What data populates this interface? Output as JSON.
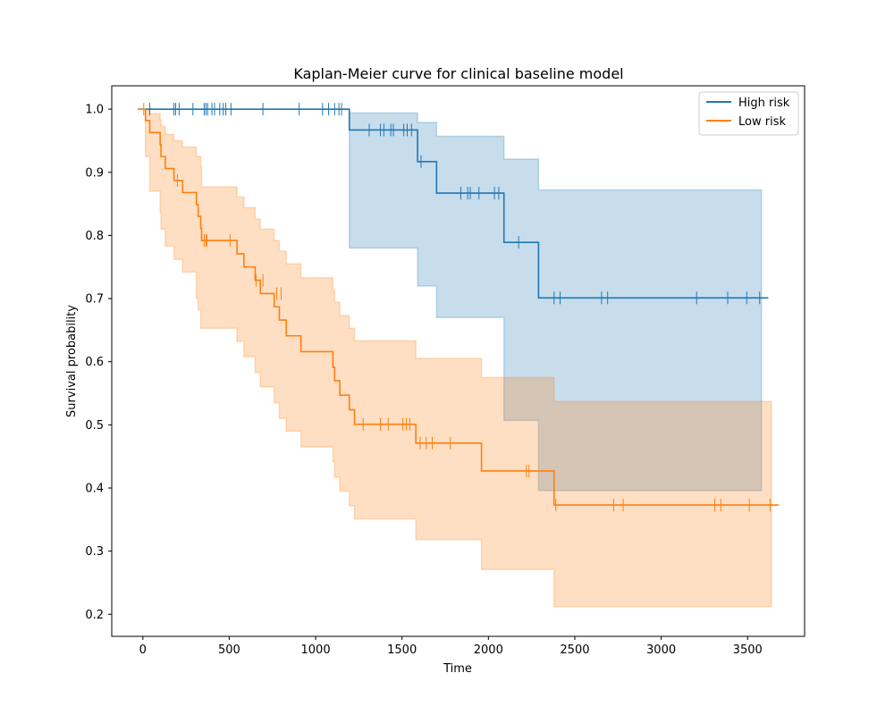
{
  "chart_data": {
    "type": "line",
    "title": "Kaplan-Meier curve for clinical baseline model",
    "xlabel": "Time",
    "ylabel": "Survival probability",
    "xlim": [
      -180,
      3830
    ],
    "ylim": [
      0.165,
      1.037
    ],
    "xticks": [
      0,
      500,
      1000,
      1500,
      2000,
      2500,
      3000,
      3500
    ],
    "yticks": [
      0.2,
      0.3,
      0.4,
      0.5,
      0.6,
      0.7,
      0.8,
      0.9,
      1.0
    ],
    "xtick_labels": [
      "0",
      "500",
      "1000",
      "1500",
      "2000",
      "2500",
      "3000",
      "3500"
    ],
    "ytick_labels": [
      "0.2",
      "0.3",
      "0.4",
      "0.5",
      "0.6",
      "0.7",
      "0.8",
      "0.9",
      "1.0"
    ],
    "grid": false,
    "legend_position": "upper right",
    "series": [
      {
        "name": "High risk",
        "color": "#1f77b4",
        "ci_color": "#1f77b4",
        "steps": [
          [
            -30,
            1.0
          ],
          [
            1195,
            0.967
          ],
          [
            1590,
            0.917
          ],
          [
            1700,
            0.867
          ],
          [
            2090,
            0.789
          ],
          [
            2290,
            0.701
          ],
          [
            3620,
            0.701
          ]
        ],
        "ci_lower": [
          [
            -30,
            1.0
          ],
          [
            1195,
            0.78
          ],
          [
            1590,
            0.72
          ],
          [
            1700,
            0.67
          ],
          [
            2090,
            0.507
          ],
          [
            2290,
            0.396
          ],
          [
            3580,
            0.396
          ]
        ],
        "ci_upper": [
          [
            -30,
            1.0
          ],
          [
            1195,
            0.994
          ],
          [
            1590,
            0.979
          ],
          [
            1700,
            0.957
          ],
          [
            2090,
            0.921
          ],
          [
            2290,
            0.872
          ],
          [
            3580,
            0.872
          ]
        ],
        "censored": [
          [
            40,
            1.0
          ],
          [
            180,
            1.0
          ],
          [
            190,
            1.0
          ],
          [
            210,
            1.0
          ],
          [
            290,
            1.0
          ],
          [
            355,
            1.0
          ],
          [
            365,
            1.0
          ],
          [
            375,
            1.0
          ],
          [
            400,
            1.0
          ],
          [
            415,
            1.0
          ],
          [
            445,
            1.0
          ],
          [
            465,
            1.0
          ],
          [
            480,
            1.0
          ],
          [
            510,
            1.0
          ],
          [
            695,
            1.0
          ],
          [
            905,
            1.0
          ],
          [
            1040,
            1.0
          ],
          [
            1075,
            1.0
          ],
          [
            1110,
            1.0
          ],
          [
            1135,
            1.0
          ],
          [
            1150,
            1.0
          ],
          [
            1310,
            0.967
          ],
          [
            1375,
            0.967
          ],
          [
            1395,
            0.967
          ],
          [
            1435,
            0.967
          ],
          [
            1450,
            0.967
          ],
          [
            1510,
            0.967
          ],
          [
            1530,
            0.967
          ],
          [
            1555,
            0.967
          ],
          [
            1610,
            0.917
          ],
          [
            1840,
            0.867
          ],
          [
            1880,
            0.867
          ],
          [
            1895,
            0.867
          ],
          [
            1945,
            0.867
          ],
          [
            2035,
            0.867
          ],
          [
            2060,
            0.867
          ],
          [
            2175,
            0.789
          ],
          [
            2380,
            0.701
          ],
          [
            2415,
            0.701
          ],
          [
            2655,
            0.701
          ],
          [
            2690,
            0.701
          ],
          [
            3205,
            0.701
          ],
          [
            3385,
            0.701
          ],
          [
            3495,
            0.701
          ],
          [
            3570,
            0.701
          ]
        ]
      },
      {
        "name": "Low risk",
        "color": "#ff7f0e",
        "ci_color": "#ff7f0e",
        "steps": [
          [
            -30,
            1.0
          ],
          [
            15,
            0.982
          ],
          [
            40,
            0.963
          ],
          [
            100,
            0.944
          ],
          [
            105,
            0.925
          ],
          [
            130,
            0.906
          ],
          [
            180,
            0.887
          ],
          [
            230,
            0.868
          ],
          [
            310,
            0.849
          ],
          [
            320,
            0.83
          ],
          [
            335,
            0.811
          ],
          [
            340,
            0.792
          ],
          [
            545,
            0.771
          ],
          [
            585,
            0.75
          ],
          [
            650,
            0.729
          ],
          [
            680,
            0.708
          ],
          [
            760,
            0.687
          ],
          [
            790,
            0.666
          ],
          [
            830,
            0.641
          ],
          [
            915,
            0.616
          ],
          [
            1100,
            0.591
          ],
          [
            1110,
            0.57
          ],
          [
            1140,
            0.547
          ],
          [
            1195,
            0.524
          ],
          [
            1225,
            0.501
          ],
          [
            1580,
            0.471
          ],
          [
            1960,
            0.427
          ],
          [
            2380,
            0.373
          ],
          [
            3680,
            0.373
          ]
        ],
        "ci_lower": [
          [
            -30,
            1.0
          ],
          [
            15,
            0.925
          ],
          [
            40,
            0.87
          ],
          [
            100,
            0.835
          ],
          [
            105,
            0.81
          ],
          [
            130,
            0.783
          ],
          [
            180,
            0.762
          ],
          [
            230,
            0.742
          ],
          [
            310,
            0.7
          ],
          [
            320,
            0.682
          ],
          [
            335,
            0.653
          ],
          [
            545,
            0.632
          ],
          [
            585,
            0.608
          ],
          [
            650,
            0.583
          ],
          [
            680,
            0.56
          ],
          [
            760,
            0.535
          ],
          [
            790,
            0.51
          ],
          [
            830,
            0.49
          ],
          [
            915,
            0.465
          ],
          [
            1100,
            0.441
          ],
          [
            1110,
            0.417
          ],
          [
            1140,
            0.395
          ],
          [
            1195,
            0.372
          ],
          [
            1225,
            0.351
          ],
          [
            1580,
            0.318
          ],
          [
            1960,
            0.271
          ],
          [
            2380,
            0.212
          ],
          [
            3638,
            0.212
          ]
        ],
        "ci_upper": [
          [
            -30,
            1.0
          ],
          [
            15,
            1.0
          ],
          [
            40,
            0.993
          ],
          [
            100,
            0.983
          ],
          [
            105,
            0.973
          ],
          [
            130,
            0.96
          ],
          [
            180,
            0.95
          ],
          [
            230,
            0.94
          ],
          [
            310,
            0.925
          ],
          [
            335,
            0.91
          ],
          [
            340,
            0.877
          ],
          [
            545,
            0.861
          ],
          [
            585,
            0.844
          ],
          [
            650,
            0.826
          ],
          [
            680,
            0.81
          ],
          [
            760,
            0.792
          ],
          [
            790,
            0.775
          ],
          [
            830,
            0.755
          ],
          [
            915,
            0.733
          ],
          [
            1100,
            0.713
          ],
          [
            1110,
            0.694
          ],
          [
            1140,
            0.673
          ],
          [
            1195,
            0.653
          ],
          [
            1225,
            0.633
          ],
          [
            1580,
            0.605
          ],
          [
            1960,
            0.575
          ],
          [
            2380,
            0.537
          ],
          [
            3638,
            0.537
          ]
        ],
        "censored": [
          [
            5,
            1.0
          ],
          [
            200,
            0.887
          ],
          [
            355,
            0.792
          ],
          [
            365,
            0.792
          ],
          [
            370,
            0.792
          ],
          [
            505,
            0.792
          ],
          [
            655,
            0.729
          ],
          [
            695,
            0.729
          ],
          [
            775,
            0.708
          ],
          [
            800,
            0.708
          ],
          [
            1275,
            0.501
          ],
          [
            1375,
            0.501
          ],
          [
            1420,
            0.501
          ],
          [
            1505,
            0.501
          ],
          [
            1525,
            0.501
          ],
          [
            1545,
            0.501
          ],
          [
            1605,
            0.471
          ],
          [
            1640,
            0.471
          ],
          [
            1675,
            0.471
          ],
          [
            1780,
            0.471
          ],
          [
            2220,
            0.427
          ],
          [
            2235,
            0.427
          ],
          [
            2390,
            0.373
          ],
          [
            2725,
            0.373
          ],
          [
            2780,
            0.373
          ],
          [
            3310,
            0.373
          ],
          [
            3345,
            0.373
          ],
          [
            3510,
            0.373
          ],
          [
            3630,
            0.373
          ]
        ]
      }
    ]
  }
}
